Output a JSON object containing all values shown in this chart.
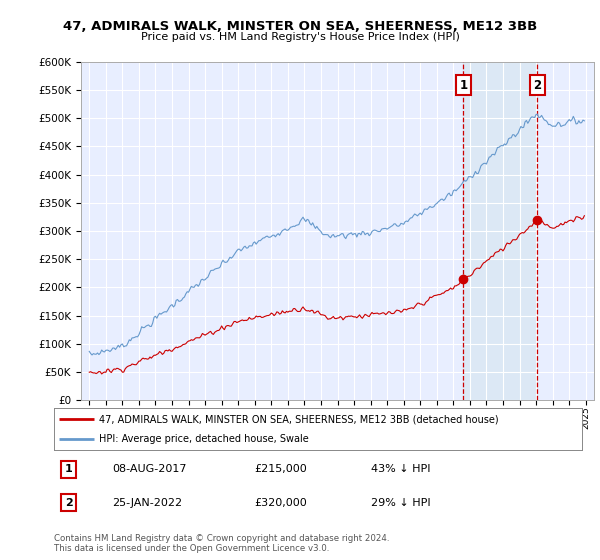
{
  "title": "47, ADMIRALS WALK, MINSTER ON SEA, SHEERNESS, ME12 3BB",
  "subtitle": "Price paid vs. HM Land Registry's House Price Index (HPI)",
  "legend_property": "47, ADMIRALS WALK, MINSTER ON SEA, SHEERNESS, ME12 3BB (detached house)",
  "legend_hpi": "HPI: Average price, detached house, Swale",
  "annotation1_date": "08-AUG-2017",
  "annotation1_price": "£215,000",
  "annotation1_hpi": "43% ↓ HPI",
  "annotation2_date": "25-JAN-2022",
  "annotation2_price": "£320,000",
  "annotation2_hpi": "29% ↓ HPI",
  "copyright": "Contains HM Land Registry data © Crown copyright and database right 2024.\nThis data is licensed under the Open Government Licence v3.0.",
  "hpi_color": "#6699cc",
  "property_color": "#cc0000",
  "vline_color": "#cc0000",
  "shade_color": "#dce8f5",
  "bg_color": "#e8eeff",
  "ylim": [
    0,
    600000
  ],
  "yticks": [
    0,
    50000,
    100000,
    150000,
    200000,
    250000,
    300000,
    350000,
    400000,
    450000,
    500000,
    550000,
    600000
  ],
  "sale1_x": 2017.6,
  "sale1_y": 215000,
  "sale2_x": 2022.07,
  "sale2_y": 320000,
  "xmin": 1994.5,
  "xmax": 2025.5
}
